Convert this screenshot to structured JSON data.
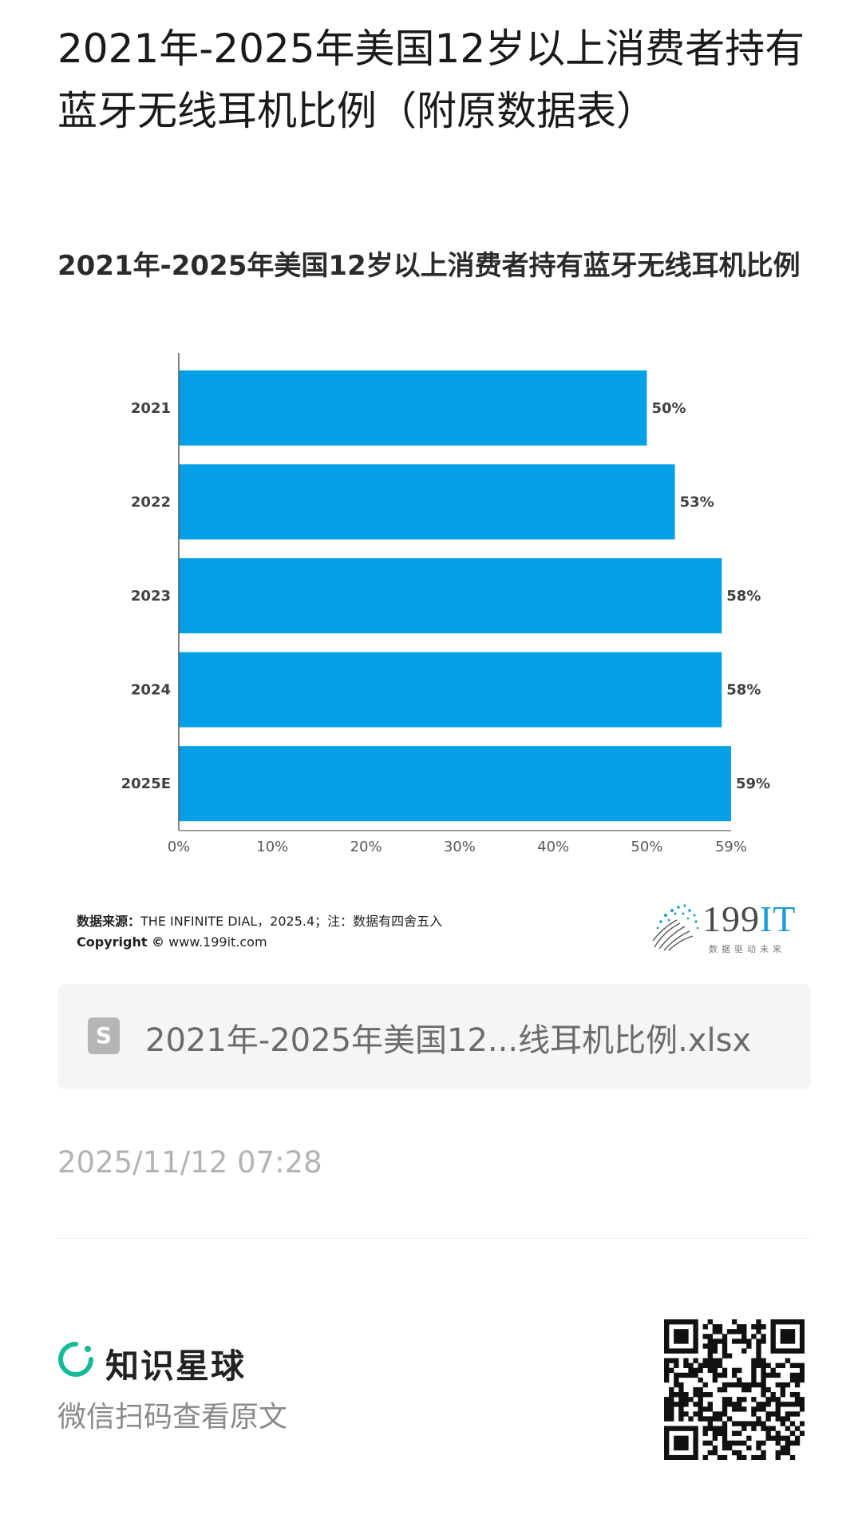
{
  "page": {
    "title": "2021年-2025年美国12岁以上消费者持有蓝牙无线耳机比例（附原数据表）"
  },
  "chart_image": {
    "chart_title": "2021年-2025年美国12岁以上消费者持有蓝牙无线耳机比例",
    "source_label": "数据来源：",
    "source_text": "THE INFINITE DIAL，2025.4；注：数据有四舍五入",
    "copyright_label": "Copyright ©",
    "copyright_text": "www.199it.com",
    "brand_name": "199",
    "brand_name_accent": "IT",
    "brand_tagline": "数据驱动未来",
    "bar_color": "#03A0E6"
  },
  "chart_data": {
    "type": "bar",
    "orientation": "horizontal",
    "title": "2021年-2025年美国12岁以上消费者持有蓝牙无线耳机比例",
    "categories": [
      "2021",
      "2022",
      "2023",
      "2024",
      "2025E"
    ],
    "values": [
      50,
      53,
      58,
      58,
      59
    ],
    "value_labels": [
      "50%",
      "53%",
      "58%",
      "58%",
      "59%"
    ],
    "x_ticks": [
      "0%",
      "10%",
      "20%",
      "30%",
      "40%",
      "50%",
      "59%"
    ],
    "x_tick_values": [
      0,
      10,
      20,
      30,
      40,
      50,
      59
    ],
    "xlim": [
      0,
      59
    ],
    "grid": false,
    "legend": "none"
  },
  "attachment": {
    "file_name": "2021年-2025年美国12...线耳机比例.xlsx",
    "icon": "spreadsheet-file-icon",
    "icon_glyph": "S"
  },
  "meta": {
    "timestamp": "2025/11/12 07:28"
  },
  "footer": {
    "app_name": "知识星球",
    "scan_hint": "微信扫码查看原文",
    "brand_color": "#16B998",
    "qr_icon": "qr-code-icon"
  }
}
